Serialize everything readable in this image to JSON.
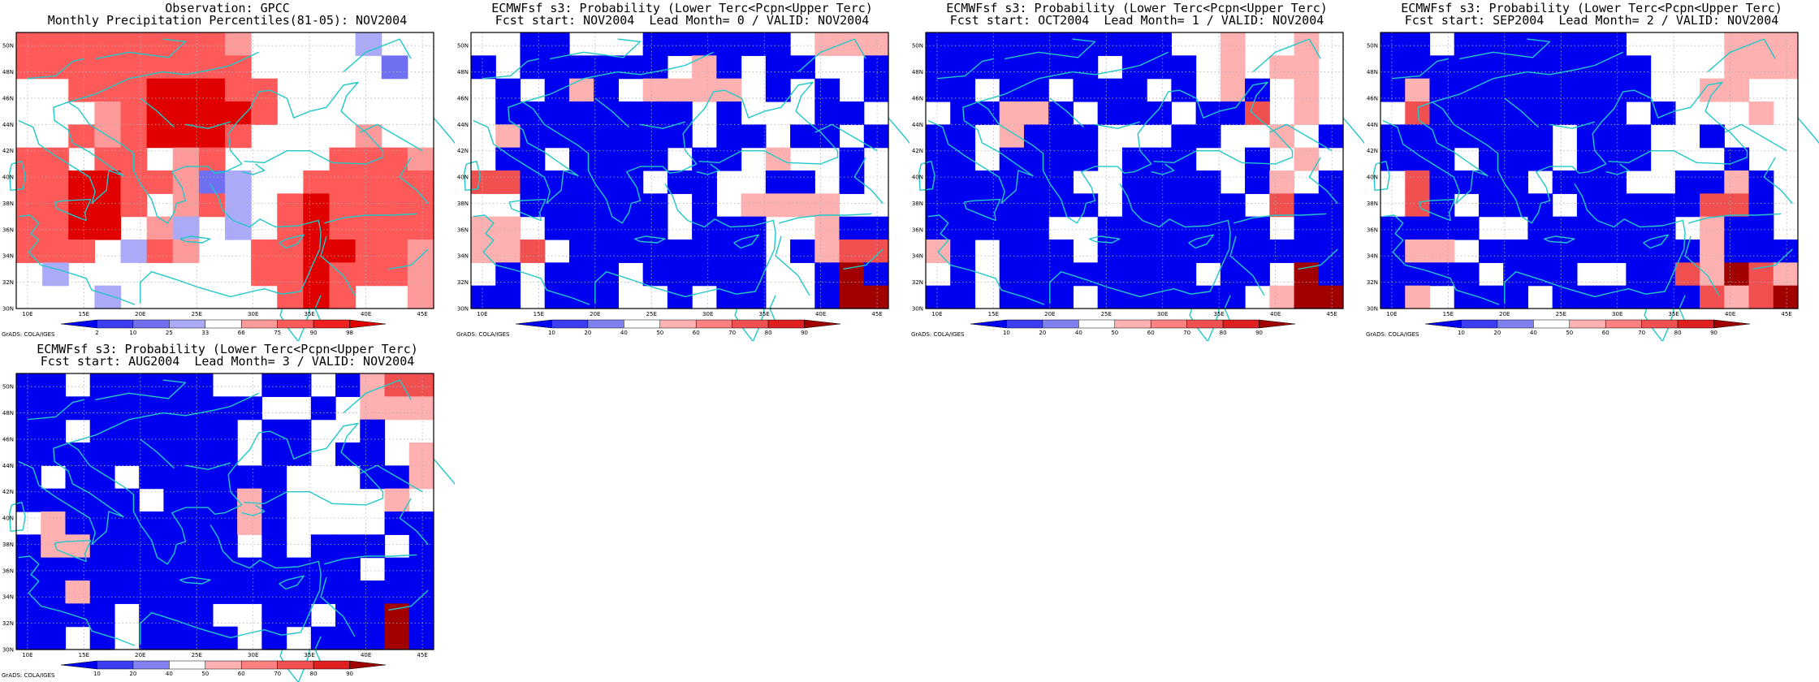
{
  "figure": {
    "panels": [
      {
        "id": "obs",
        "title_line1": "Observation: GPCC",
        "title_line2": "Monthly Precipitation Percentiles(81-05): NOV2004",
        "colorbar_labels": [
          "2",
          "10",
          "25",
          "33",
          "66",
          "75",
          "90",
          "98"
        ],
        "colorbar_colors": [
          "#0000f0",
          "#3c3cf0",
          "#7070f0",
          "#aaaaf8",
          "#ffffff",
          "#ff9a9a",
          "#ff5a5a",
          "#f02020",
          "#e00000"
        ],
        "grid": [
          "RRRRRRRRP....B..",
          "RRRRRRRRR....._.",
          "..RRRSSSRR.......",
          "...PRSSSSR.......",
          "..RPRSSSR....P...",
          "RR.RR.PR....RRRP.",
          "RRSSRRP_B..RRRRRP",
          "RRSSR.PRB.RSRRRRR",
          "RRSS.PB.B.RSRRRRP",
          "RRR.BRP..RRSSRRPR",
          ".B.......RRSRRRPP",
          "...B......RSR..P."
        ]
      },
      {
        "id": "lead0",
        "title_line1": "ECMWFsf s3: Probability (Lower Terc<Pcpn<Upper Terc)",
        "title_line2": "Fcst start: NOV2004  Lead Month= 0 / VALID: NOV2004",
        "colorbar_labels": [
          "10",
          "20",
          "40",
          "50",
          "60",
          "70",
          "80",
          "90"
        ],
        "colorbar_colors": [
          "#0000f0",
          "#3c3cf0",
          "#8080f0",
          "#ffffff",
          "#ffb0b0",
          "#ff8080",
          "#f05050",
          "#e02020",
          "#a00000"
        ],
        "grid": [
          "..BB...BBBBBB.PPP",
          "B.BBBBBB.PB.BB..B",
          ".B.BPB.PPPP.B.B.B",
          ".BBBBBBBB.B...BB.",
          ".PBBBBBBB.BB.BB.B",
          ".BB.BBBB.BB.P..B.",
          "RRBBBBB.BB..BB.B.",
          "..BBBBBB.B.PPPP..",
          "PP.BBBBB.BBB..PBB",
          "PPR.BBBBBBBB.BPRR",
          ".B.BBB.BBBBB..BSB",
          "BB.BBB..B.BB..BSS"
        ]
      },
      {
        "id": "lead1",
        "title_line1": "ECMWFsf s3: Probability (Lower Terc<Pcpn<Upper Terc)",
        "title_line2": "Fcst start: OCT2004  Lead Month= 1 / VALID: NOV2004",
        "colorbar_labels": [
          "10",
          "20",
          "40",
          "50",
          "60",
          "70",
          "80",
          "90"
        ],
        "colorbar_colors": [
          "#0000f0",
          "#3c3cf0",
          "#8080f0",
          "#ffffff",
          "#ffb0b0",
          "#ff8080",
          "#f05050",
          "#e02020",
          "#a00000"
        ],
        "grid": [
          "BBBBBBBBBB..P..P.",
          "BBBBBBB.BBB.P.PP.",
          "BB.BB.BBB.B.PB.P.",
          ".BBPPB.BBB.BBR.P.",
          "BB.PBBB...BB..P.B",
          "BB.BBBB.BBB..B.P.",
          "BBBBBB..BBBB.BP.B",
          "BBBBBBB.BBBBB.RBB",
          "BBBBB..BBBBBBB.BB",
          "PB.BBB.BBBBBBBBBB",
          ".B.BBBBBBBB.BB.SB",
          "BB.BBB.BBBBBB.PSS"
        ]
      },
      {
        "id": "lead2",
        "title_line1": "ECMWFsf s3: Probability (Lower Terc<Pcpn<Upper Terc)",
        "title_line2": "Fcst start: SEP2004  Lead Month= 2 / VALID: NOV2004",
        "colorbar_labels": [
          "10",
          "20",
          "40",
          "50",
          "60",
          "70",
          "80",
          "90"
        ],
        "colorbar_colors": [
          "#0000f0",
          "#3c3cf0",
          "#8080f0",
          "#ffffff",
          "#ffb0b0",
          "#ff8080",
          "#f05050",
          "#e02020",
          "#a00000"
        ],
        "grid": [
          "BB.BBBBBBB....PPP",
          "BBBBBBBBBBB...PPP",
          "BPBBBBBBBBB..PP..",
          ".RBBBBBBBB.B...P.",
          "BBBBBBB.BBB..B...",
          "BBB.BBB.BBB...B..",
          ".RBBBB.BBB..BBPB.",
          ".RB.BBB.BBBBBRRB.",
          "BBBB..BBBBBB.PBB.",
          "BPP.BBBBBBBBBPBBB",
          "BBBB.BBB..BBRPSRP",
          "BP.BBB.BBBBBBRPRS"
        ]
      },
      {
        "id": "lead3",
        "title_line1": "ECMWFsf s3: Probability (Lower Terc<Pcpn<Upper Terc)",
        "title_line2": "Fcst start: AUG2004  Lead Month= 3 / VALID: NOV2004",
        "colorbar_labels": [
          "10",
          "20",
          "40",
          "50",
          "60",
          "70",
          "80",
          "90"
        ],
        "colorbar_colors": [
          "#0000f0",
          "#3c3cf0",
          "#8080f0",
          "#ffffff",
          "#ffb0b0",
          "#ff8080",
          "#f05050",
          "#e02020",
          "#a00000"
        ],
        "grid": [
          "BB.BBBBB..BB.BPRR",
          "BBBBBBBBBB..B.PPP",
          "BB.BBBBBB.BB..B..",
          "BBBBBBBBB.BB.BB.P",
          "B.BB.BBBBBB...BBP",
          "BBBBB.BBBPB....P.",
          ".PBBBBBBBPB....BB",
          "BPPBBBBBB.B.BBB.B",
          "BBBBBBBBBBBBBB.BB",
          "BBPBBBBBBBBBBBBBB",
          "BBBB.BBB..BB.BBSB",
          "BB.B.BBBB.B.BBBSB"
        ]
      }
    ],
    "axis_lon_labels": [
      "10E",
      "15E",
      "20E",
      "25E",
      "30E",
      "35E",
      "40E",
      "45E"
    ],
    "axis_lat_labels": [
      "50N",
      "48N",
      "46N",
      "44N",
      "42N",
      "40N",
      "38N",
      "36N",
      "34N",
      "32N",
      "30N"
    ],
    "footer": "GrADS: COLA/IGES",
    "colors": {
      "coast": "#22c8c8",
      "grid_dots": "#b0b0b0"
    }
  }
}
